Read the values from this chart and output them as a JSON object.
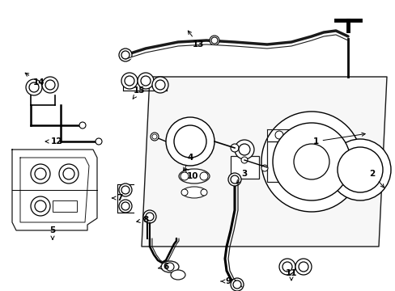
{
  "background_color": "#ffffff",
  "line_color": "#1a1a1a",
  "figsize": [
    4.89,
    3.6
  ],
  "dpi": 100,
  "label_fs": 7.5
}
